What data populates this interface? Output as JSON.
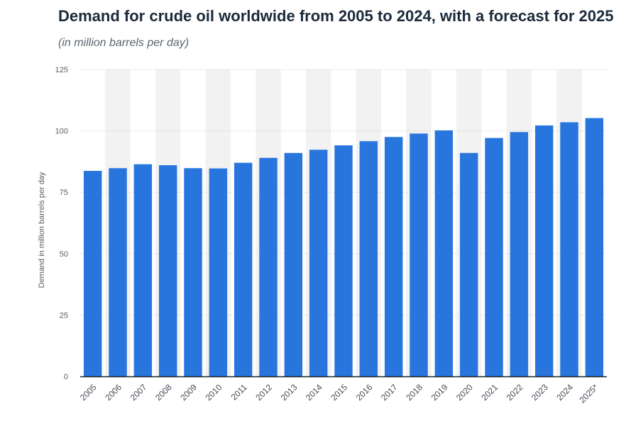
{
  "header": {
    "title": "Demand for crude oil worldwide from 2005 to 2024, with a forecast for 2025",
    "subtitle": "(in million barrels per day)"
  },
  "colors": {
    "bar": "#2876dd",
    "grid": "#c8cdd3",
    "band": "#f2f2f2",
    "axis": "#222222"
  },
  "chart_data": {
    "type": "bar",
    "title": "Demand for crude oil worldwide from 2005 to 2024, with a forecast for 2025",
    "subtitle": "(in million barrels per day)",
    "xlabel": "",
    "ylabel": "Demand in million barrels per day",
    "ylim": [
      0,
      125
    ],
    "yticks": [
      0,
      25,
      50,
      75,
      100,
      125
    ],
    "grid": true,
    "categories": [
      "2005",
      "2006",
      "2007",
      "2008",
      "2009",
      "2010",
      "2011",
      "2012",
      "2013",
      "2014",
      "2015",
      "2016",
      "2017",
      "2018",
      "2019",
      "2020",
      "2021",
      "2022",
      "2023",
      "2024",
      "2025*"
    ],
    "series": [
      {
        "name": "Demand",
        "values": [
          83.7,
          84.8,
          86.4,
          86.0,
          84.8,
          84.7,
          87.0,
          89.0,
          91.0,
          92.3,
          94.1,
          95.8,
          97.5,
          98.9,
          100.2,
          91.0,
          97.1,
          99.5,
          102.2,
          103.5,
          105.2
        ]
      }
    ]
  }
}
